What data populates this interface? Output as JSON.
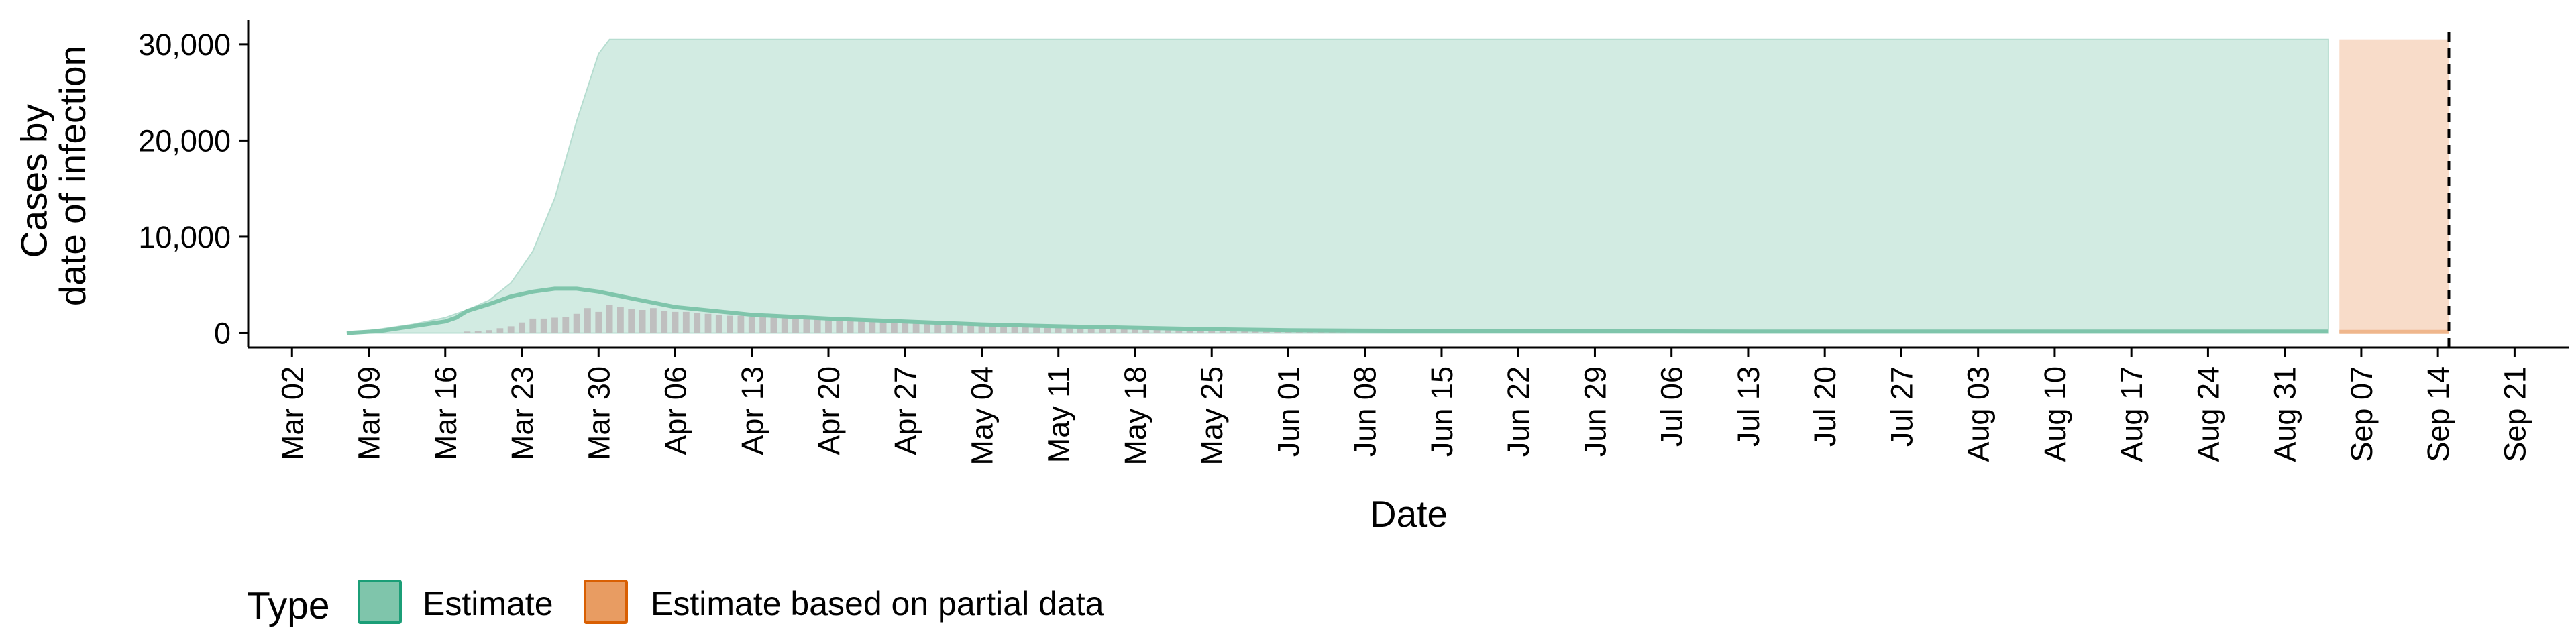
{
  "chart_data": {
    "type": "area",
    "title": "",
    "xlabel": "Date",
    "ylabel_lines": [
      "Cases by",
      "date of infection"
    ],
    "ylim": [
      -1500,
      32500
    ],
    "y_ticks": [
      0,
      10000,
      20000,
      30000
    ],
    "y_tick_labels": [
      "0",
      "10,000",
      "20,000",
      "30,000"
    ],
    "x_range": [
      "2020-02-27",
      "2020-09-26"
    ],
    "x_ticks": [
      "2020-03-02",
      "2020-03-09",
      "2020-03-16",
      "2020-03-23",
      "2020-03-30",
      "2020-04-06",
      "2020-04-13",
      "2020-04-20",
      "2020-04-27",
      "2020-05-04",
      "2020-05-11",
      "2020-05-18",
      "2020-05-25",
      "2020-06-01",
      "2020-06-08",
      "2020-06-15",
      "2020-06-22",
      "2020-06-29",
      "2020-07-06",
      "2020-07-13",
      "2020-07-20",
      "2020-07-27",
      "2020-08-03",
      "2020-08-10",
      "2020-08-17",
      "2020-08-24",
      "2020-08-31",
      "2020-09-07",
      "2020-09-14",
      "2020-09-21"
    ],
    "x_tick_labels": [
      "Mar 02",
      "Mar 09",
      "Mar 16",
      "Mar 23",
      "Mar 30",
      "Apr 06",
      "Apr 13",
      "Apr 20",
      "Apr 27",
      "May 04",
      "May 11",
      "May 18",
      "May 25",
      "Jun 01",
      "Jun 08",
      "Jun 15",
      "Jun 22",
      "Jun 29",
      "Jul 06",
      "Jul 13",
      "Jul 20",
      "Jul 27",
      "Aug 03",
      "Aug 10",
      "Aug 17",
      "Aug 24",
      "Aug 31",
      "Sep 07",
      "Sep 14",
      "Sep 21"
    ],
    "vline_date": "2020-09-15",
    "grid": false,
    "legend_position": "bottom-left",
    "series": [
      {
        "name": "Estimate",
        "color": "#1b9e77",
        "fill": "#d2ebe2",
        "upper": [
          [
            "2020-03-07",
            0
          ],
          [
            "2020-03-10",
            400
          ],
          [
            "2020-03-13",
            900
          ],
          [
            "2020-03-16",
            1600
          ],
          [
            "2020-03-18",
            2400
          ],
          [
            "2020-03-20",
            3400
          ],
          [
            "2020-03-22",
            5200
          ],
          [
            "2020-03-24",
            8500
          ],
          [
            "2020-03-26",
            14000
          ],
          [
            "2020-03-28",
            22000
          ],
          [
            "2020-03-30",
            29000
          ],
          [
            "2020-03-31",
            30500
          ],
          [
            "2020-09-04",
            30500
          ]
        ],
        "median": [
          [
            "2020-03-07",
            0
          ],
          [
            "2020-03-10",
            200
          ],
          [
            "2020-03-13",
            700
          ],
          [
            "2020-03-16",
            1200
          ],
          [
            "2020-03-17",
            1600
          ],
          [
            "2020-03-18",
            2300
          ],
          [
            "2020-03-20",
            3000
          ],
          [
            "2020-03-22",
            3800
          ],
          [
            "2020-03-24",
            4300
          ],
          [
            "2020-03-26",
            4600
          ],
          [
            "2020-03-28",
            4600
          ],
          [
            "2020-03-30",
            4300
          ],
          [
            "2020-04-02",
            3600
          ],
          [
            "2020-04-06",
            2700
          ],
          [
            "2020-04-13",
            1900
          ],
          [
            "2020-04-20",
            1500
          ],
          [
            "2020-04-27",
            1200
          ],
          [
            "2020-05-04",
            900
          ],
          [
            "2020-05-11",
            700
          ],
          [
            "2020-05-18",
            550
          ],
          [
            "2020-05-25",
            400
          ],
          [
            "2020-06-01",
            300
          ],
          [
            "2020-06-08",
            250
          ],
          [
            "2020-06-15",
            220
          ],
          [
            "2020-06-22",
            200
          ],
          [
            "2020-06-29",
            180
          ],
          [
            "2020-07-06",
            170
          ],
          [
            "2020-07-13",
            160
          ],
          [
            "2020-07-20",
            150
          ],
          [
            "2020-07-27",
            150
          ],
          [
            "2020-08-03",
            150
          ],
          [
            "2020-08-10",
            150
          ],
          [
            "2020-08-17",
            150
          ],
          [
            "2020-08-24",
            150
          ],
          [
            "2020-08-31",
            150
          ],
          [
            "2020-09-04",
            150
          ]
        ],
        "lower": [
          [
            "2020-03-07",
            0
          ],
          [
            "2020-09-04",
            0
          ]
        ]
      },
      {
        "name": "Estimate based on partial data",
        "color": "#d95f02",
        "fill": "#f8dcc9",
        "start": "2020-09-05",
        "end": "2020-09-15",
        "upper_value": 30500,
        "lower_value": 0
      }
    ],
    "reported_cases": {
      "color": "#bfbfbf",
      "values": [
        [
          "2020-03-18",
          150
        ],
        [
          "2020-03-19",
          200
        ],
        [
          "2020-03-20",
          300
        ],
        [
          "2020-03-21",
          500
        ],
        [
          "2020-03-22",
          700
        ],
        [
          "2020-03-23",
          1100
        ],
        [
          "2020-03-24",
          1500
        ],
        [
          "2020-03-25",
          1500
        ],
        [
          "2020-03-26",
          1600
        ],
        [
          "2020-03-27",
          1700
        ],
        [
          "2020-03-28",
          2000
        ],
        [
          "2020-03-29",
          2600
        ],
        [
          "2020-03-30",
          2200
        ],
        [
          "2020-03-31",
          2900
        ],
        [
          "2020-04-01",
          2700
        ],
        [
          "2020-04-02",
          2500
        ],
        [
          "2020-04-03",
          2400
        ],
        [
          "2020-04-04",
          2600
        ],
        [
          "2020-04-05",
          2300
        ],
        [
          "2020-04-06",
          2200
        ],
        [
          "2020-04-07",
          2200
        ],
        [
          "2020-04-08",
          2100
        ],
        [
          "2020-04-09",
          2000
        ],
        [
          "2020-04-10",
          1900
        ],
        [
          "2020-04-11",
          1800
        ],
        [
          "2020-04-12",
          1800
        ],
        [
          "2020-04-13",
          1700
        ],
        [
          "2020-04-14",
          1700
        ],
        [
          "2020-04-15",
          1600
        ],
        [
          "2020-04-16",
          1600
        ],
        [
          "2020-04-17",
          1500
        ],
        [
          "2020-04-18",
          1500
        ],
        [
          "2020-04-19",
          1500
        ],
        [
          "2020-04-20",
          1400
        ],
        [
          "2020-04-21",
          1400
        ],
        [
          "2020-04-22",
          1300
        ],
        [
          "2020-04-23",
          1300
        ],
        [
          "2020-04-24",
          1200
        ],
        [
          "2020-04-25",
          1200
        ],
        [
          "2020-04-26",
          1100
        ],
        [
          "2020-04-27",
          1100
        ],
        [
          "2020-04-28",
          1100
        ],
        [
          "2020-04-29",
          1000
        ],
        [
          "2020-04-30",
          1000
        ],
        [
          "2020-05-01",
          950
        ],
        [
          "2020-05-02",
          900
        ],
        [
          "2020-05-03",
          900
        ],
        [
          "2020-05-04",
          850
        ],
        [
          "2020-05-05",
          800
        ],
        [
          "2020-05-06",
          800
        ],
        [
          "2020-05-07",
          750
        ],
        [
          "2020-05-08",
          700
        ],
        [
          "2020-05-09",
          700
        ],
        [
          "2020-05-10",
          650
        ],
        [
          "2020-05-11",
          600
        ],
        [
          "2020-05-12",
          600
        ],
        [
          "2020-05-13",
          550
        ],
        [
          "2020-05-14",
          550
        ],
        [
          "2020-05-15",
          500
        ],
        [
          "2020-05-16",
          500
        ],
        [
          "2020-05-17",
          450
        ],
        [
          "2020-05-18",
          450
        ],
        [
          "2020-05-19",
          400
        ],
        [
          "2020-05-20",
          400
        ],
        [
          "2020-05-21",
          380
        ],
        [
          "2020-05-22",
          350
        ],
        [
          "2020-05-23",
          330
        ],
        [
          "2020-05-24",
          300
        ],
        [
          "2020-05-25",
          300
        ],
        [
          "2020-05-26",
          280
        ],
        [
          "2020-05-27",
          260
        ],
        [
          "2020-05-28",
          250
        ],
        [
          "2020-05-29",
          240
        ],
        [
          "2020-05-30",
          220
        ],
        [
          "2020-05-31",
          210
        ],
        [
          "2020-06-01",
          200
        ],
        [
          "2020-06-02",
          190
        ],
        [
          "2020-06-03",
          180
        ],
        [
          "2020-06-04",
          170
        ],
        [
          "2020-06-05",
          160
        ],
        [
          "2020-06-06",
          150
        ]
      ]
    }
  },
  "legend": {
    "title": "Type",
    "items": [
      {
        "label": "Estimate",
        "fill": "#7fc5ab",
        "stroke": "#1b9e77"
      },
      {
        "label": "Estimate based on partial data",
        "fill": "#e89c62",
        "stroke": "#d95f02"
      }
    ]
  }
}
